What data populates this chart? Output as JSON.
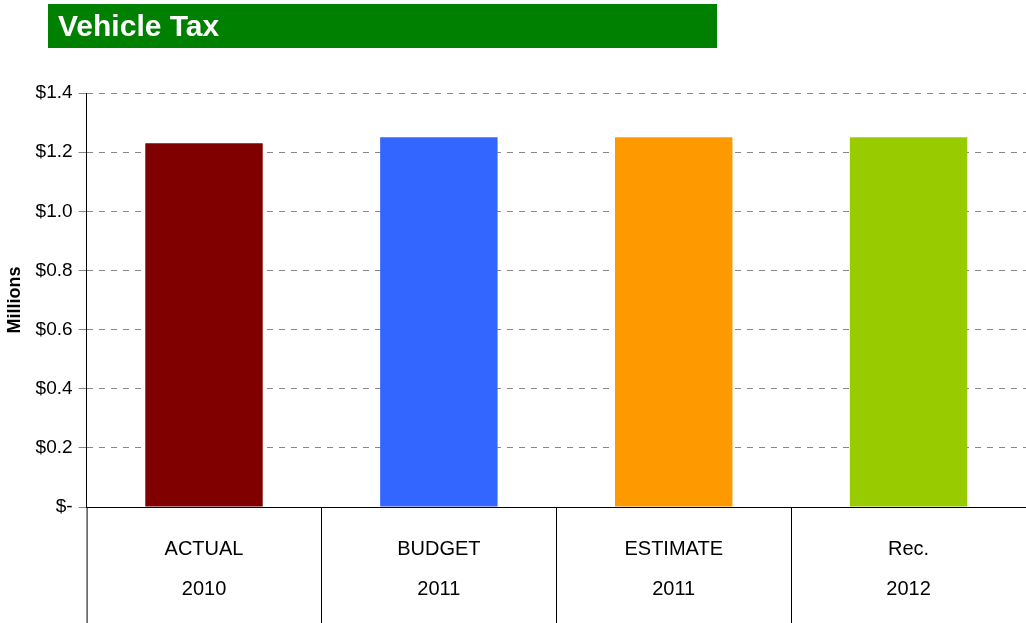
{
  "chart_data": {
    "type": "bar",
    "title": "Vehicle Tax",
    "ylabel": "Millions",
    "categories": [
      "ACTUAL\n2010",
      "BUDGET\n2011",
      "ESTIMATE\n2011",
      "Rec.\n2012"
    ],
    "values": [
      1.23,
      1.25,
      1.25,
      1.25
    ],
    "colors": [
      "#800000",
      "#3366ff",
      "#ff9900",
      "#99cc00"
    ],
    "ylim": [
      0,
      1.4
    ],
    "yticks": [
      {
        "value": 0,
        "label": "$-"
      },
      {
        "value": 0.2,
        "label": "$0.2"
      },
      {
        "value": 0.4,
        "label": "$0.4"
      },
      {
        "value": 0.6,
        "label": "$0.6"
      },
      {
        "value": 0.8,
        "label": "$0.8"
      },
      {
        "value": 1.0,
        "label": "$1.0"
      },
      {
        "value": 1.2,
        "label": "$1.2"
      },
      {
        "value": 1.4,
        "label": "$1.4"
      }
    ],
    "grid": "y",
    "legend": false
  }
}
